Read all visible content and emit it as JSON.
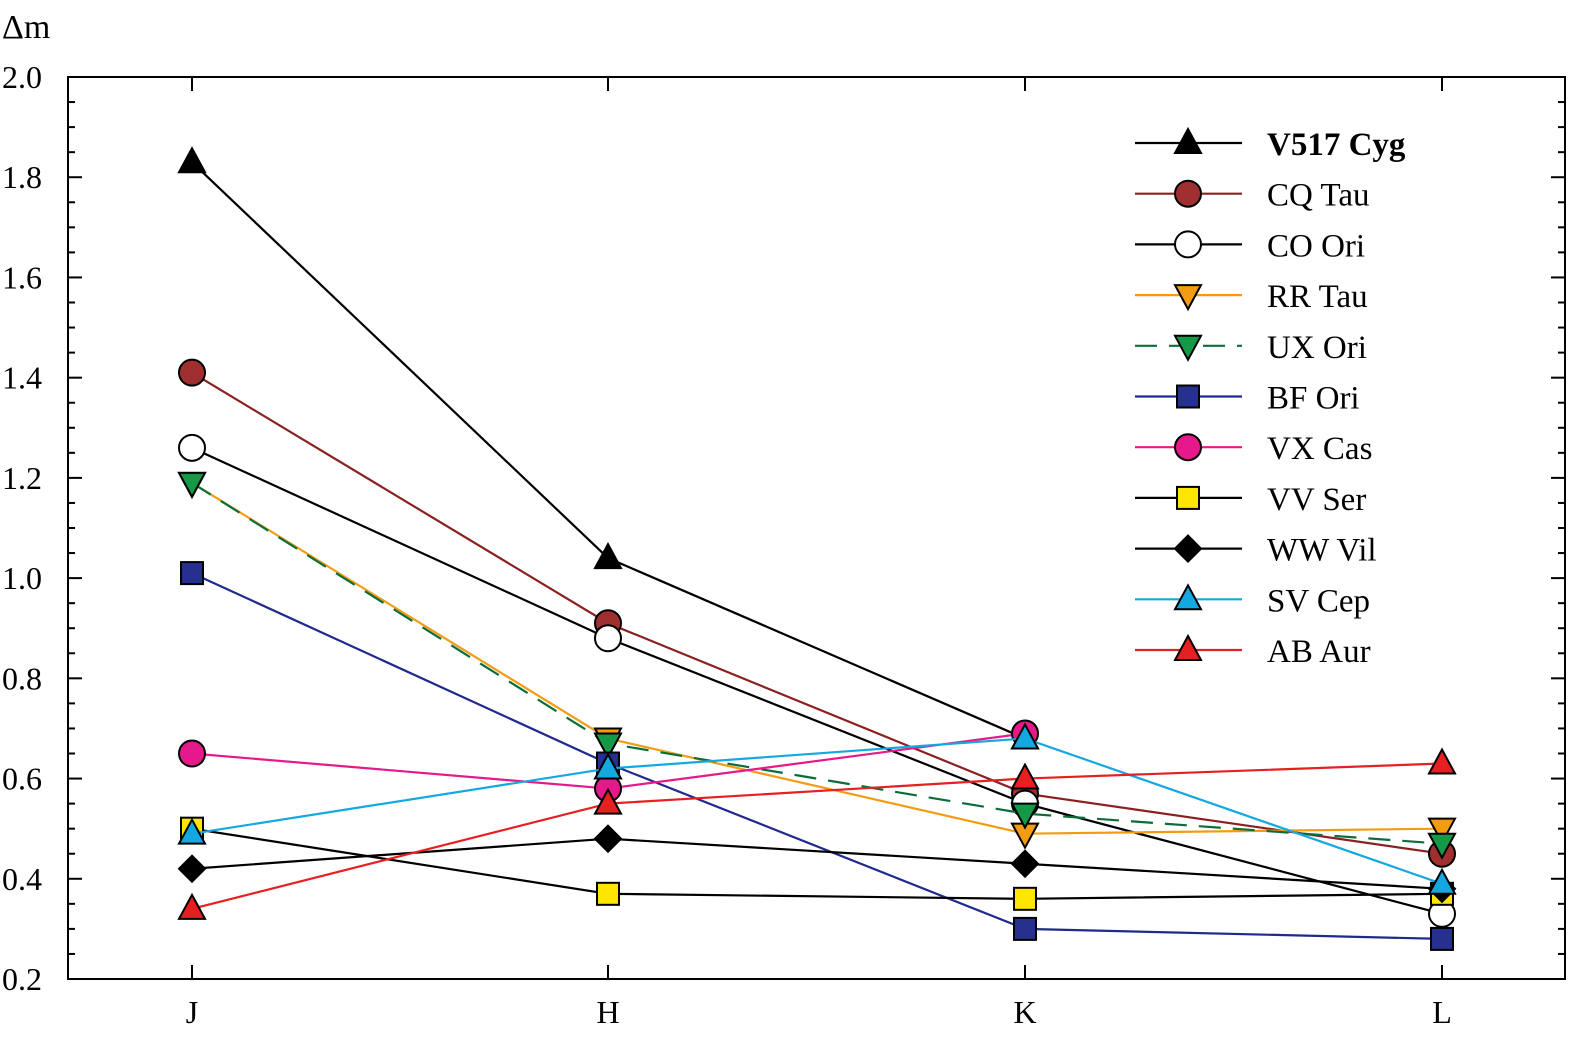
{
  "chart_data": {
    "type": "line",
    "ylabel": "Δm",
    "xlabel": "",
    "categories": [
      "J",
      "H",
      "K",
      "L"
    ],
    "ylim": [
      0.2,
      2.0
    ],
    "yticks": [
      "0.2",
      "0.4",
      "0.6",
      "0.8",
      "1.0",
      "1.2",
      "1.4",
      "1.6",
      "1.8",
      "2.0"
    ],
    "legend_position": "top-right",
    "grid": false,
    "series": [
      {
        "name": "V517 Cyg",
        "bold": true,
        "values": [
          1.83,
          1.04,
          0.68,
          null
        ],
        "line_color": "#000000",
        "marker": "triangle-up",
        "marker_fill": "#000000",
        "dashed": false
      },
      {
        "name": "CQ Tau",
        "bold": false,
        "values": [
          1.41,
          0.91,
          0.57,
          0.45
        ],
        "line_color": "#8b2020",
        "marker": "circle",
        "marker_fill": "#a03030",
        "dashed": false
      },
      {
        "name": "CO Ori",
        "bold": false,
        "values": [
          1.26,
          0.88,
          0.55,
          0.33
        ],
        "line_color": "#000000",
        "marker": "circle",
        "marker_fill": "#ffffff",
        "dashed": false
      },
      {
        "name": "RR Tau",
        "bold": false,
        "values": [
          1.19,
          0.68,
          0.49,
          0.5
        ],
        "line_color": "#f39c12",
        "marker": "triangle-down",
        "marker_fill": "#f39c12",
        "dashed": false
      },
      {
        "name": "UX Ori",
        "bold": false,
        "values": [
          1.19,
          0.67,
          0.53,
          0.47
        ],
        "line_color": "#0b6e3a",
        "marker": "triangle-down",
        "marker_fill": "#149947",
        "dashed": true
      },
      {
        "name": "BF Ori",
        "bold": false,
        "values": [
          1.01,
          0.63,
          0.3,
          0.28
        ],
        "line_color": "#1f2a8c",
        "marker": "square",
        "marker_fill": "#25308f",
        "dashed": false
      },
      {
        "name": "VX Cas",
        "bold": false,
        "values": [
          0.65,
          0.58,
          0.69,
          null
        ],
        "line_color": "#e6198a",
        "marker": "circle",
        "marker_fill": "#e6198a",
        "dashed": false
      },
      {
        "name": "VV Ser",
        "bold": false,
        "values": [
          0.5,
          0.37,
          0.36,
          0.37
        ],
        "line_color": "#000000",
        "marker": "square",
        "marker_fill": "#ffe600",
        "dashed": false
      },
      {
        "name": "WW Vil",
        "bold": false,
        "values": [
          0.42,
          0.48,
          0.43,
          0.38
        ],
        "line_color": "#000000",
        "marker": "diamond",
        "marker_fill": "#000000",
        "dashed": false
      },
      {
        "name": "SV Cep",
        "bold": false,
        "values": [
          0.49,
          0.62,
          0.68,
          0.39
        ],
        "line_color": "#14a8e0",
        "marker": "triangle-up",
        "marker_fill": "#14a8e0",
        "dashed": false
      },
      {
        "name": "AB Aur",
        "bold": false,
        "values": [
          0.34,
          0.55,
          0.6,
          0.63
        ],
        "line_color": "#e62020",
        "marker": "triangle-up",
        "marker_fill": "#e62020",
        "dashed": false
      }
    ]
  }
}
